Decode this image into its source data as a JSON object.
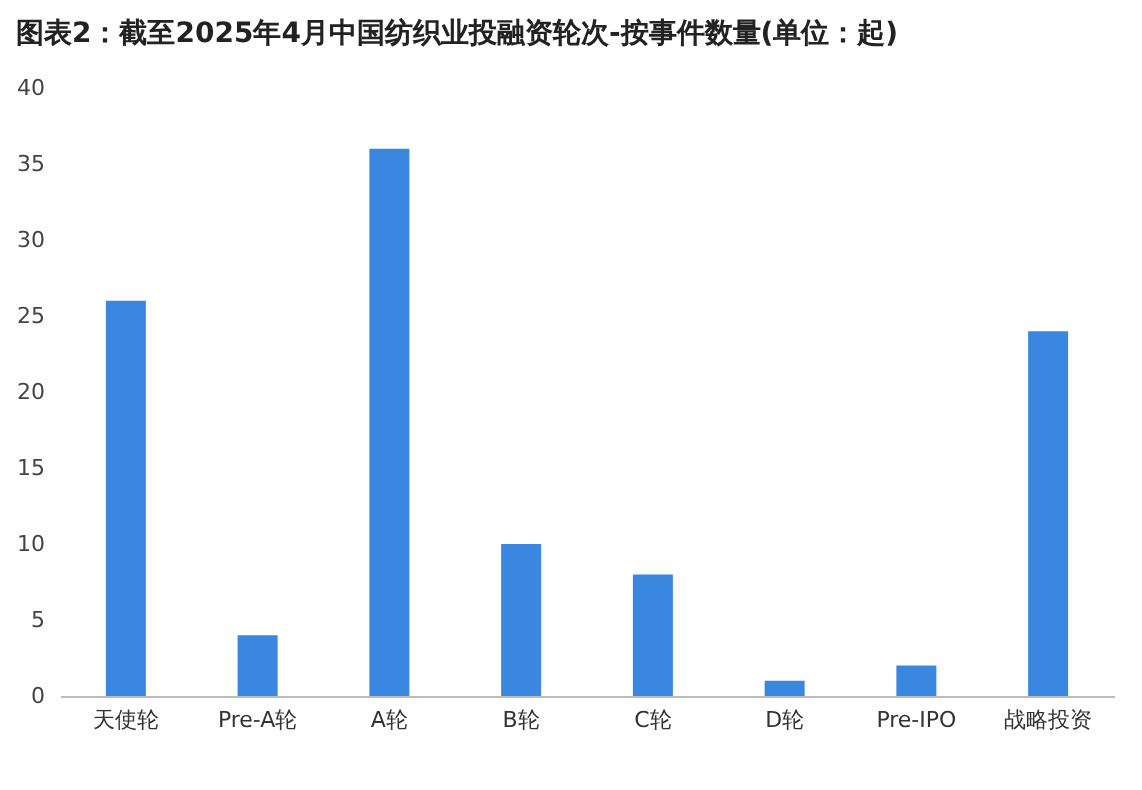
{
  "chart_data": {
    "type": "bar",
    "title": "图表2：截至2025年4月中国纺织业投融资轮次-按事件数量(单位：起)",
    "categories": [
      "天使轮",
      "Pre-A轮",
      "A轮",
      "B轮",
      "C轮",
      "D轮",
      "Pre-IPO",
      "战略投资"
    ],
    "values": [
      26,
      4,
      36,
      10,
      8,
      1,
      2,
      24
    ],
    "color": "#3a87e0",
    "ylim": [
      0,
      40
    ],
    "yticks": [
      0,
      5,
      10,
      15,
      20,
      25,
      30,
      35,
      40
    ],
    "grid": false
  }
}
